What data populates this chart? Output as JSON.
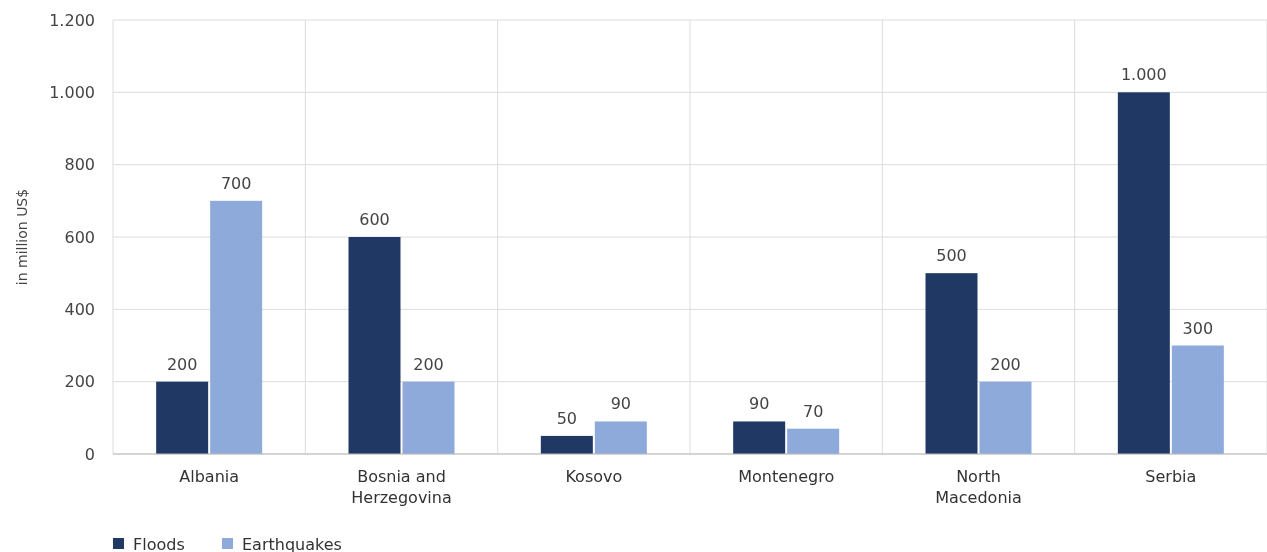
{
  "chart_data": {
    "type": "bar",
    "ylabel": "in million US$",
    "categories": [
      "Albania",
      "Bosnia and Herzegovina",
      "Kosovo",
      "Montenegro",
      "North Macedonia",
      "Serbia"
    ],
    "series": [
      {
        "name": "Floods",
        "color": "#1f3864",
        "values": [
          200,
          600,
          50,
          90,
          500,
          1000
        ],
        "value_labels": [
          "200",
          "600",
          "50",
          "90",
          "500",
          "1.000"
        ]
      },
      {
        "name": "Earthquakes",
        "color": "#8eaadb",
        "values": [
          700,
          200,
          90,
          70,
          200,
          300
        ],
        "value_labels": [
          "700",
          "200",
          "90",
          "70",
          "200",
          "300"
        ]
      }
    ],
    "ylim": [
      0,
      1200
    ],
    "yticks": [
      {
        "value": 0,
        "label": "0"
      },
      {
        "value": 200,
        "label": "200"
      },
      {
        "value": 400,
        "label": "400"
      },
      {
        "value": 600,
        "label": "600"
      },
      {
        "value": 800,
        "label": "800"
      },
      {
        "value": 1000,
        "label": "1.000"
      },
      {
        "value": 1200,
        "label": "1.200"
      }
    ],
    "grid": true,
    "legend": "bottom left"
  }
}
